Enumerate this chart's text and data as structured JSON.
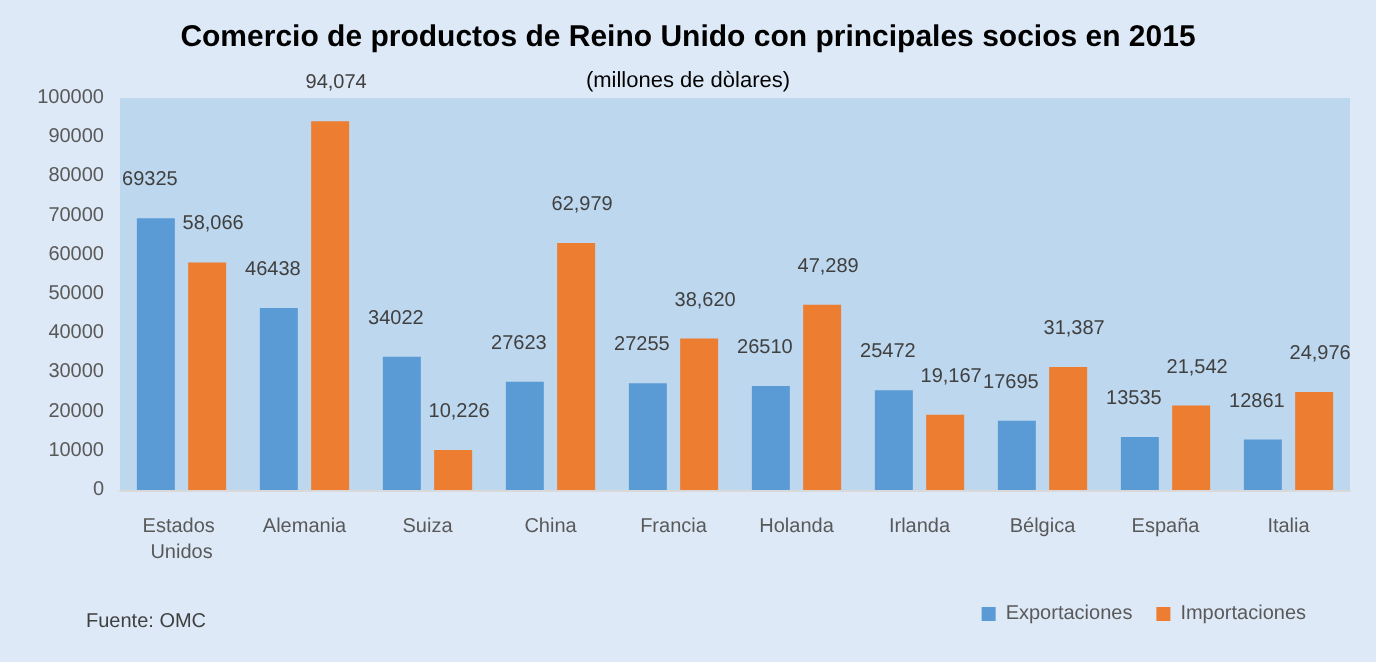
{
  "chart_data": {
    "type": "bar",
    "title": "Comercio de productos de Reino Unido con principales socios en 2015",
    "subtitle": "(millones de dòlares)",
    "categories": [
      "Estados Unidos",
      "Alemania",
      "Suiza",
      "China",
      "Francia",
      "Holanda",
      "Irlanda",
      "Bélgica",
      "España",
      "Italia"
    ],
    "series": [
      {
        "name": "Exportaciones",
        "color": "#5b9bd5",
        "values": [
          69325,
          46438,
          34022,
          27623,
          27255,
          26510,
          25472,
          17695,
          13535,
          12861
        ],
        "value_labels": [
          "69325",
          "46438",
          "34022",
          "27623",
          "27255",
          "26510",
          "25472",
          "17695",
          "13535",
          "12861"
        ]
      },
      {
        "name": "Importaciones",
        "color": "#ed7d31",
        "values": [
          58066,
          94074,
          10226,
          62979,
          38620,
          47289,
          19167,
          31387,
          21542,
          24976
        ],
        "value_labels": [
          "58,066",
          "94,074",
          "10,226",
          "62,979",
          "38,620",
          "47,289",
          "19,167",
          "31,387",
          "21,542",
          "24,976"
        ]
      }
    ],
    "ylim": [
      0,
      100000
    ],
    "yticks": [
      0,
      10000,
      20000,
      30000,
      40000,
      50000,
      60000,
      70000,
      80000,
      90000,
      100000
    ],
    "grid": false,
    "legend": "bottom right",
    "annotations": [
      "Fuente: OMC"
    ]
  }
}
